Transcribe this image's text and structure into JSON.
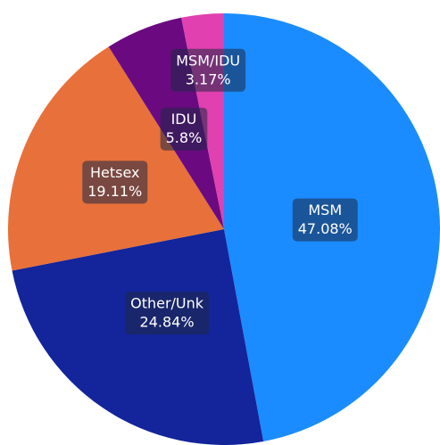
{
  "chart_data": {
    "type": "pie",
    "categories": [
      "MSM",
      "Other/Unk",
      "Hetsex",
      "IDU",
      "MSM/IDU"
    ],
    "values": [
      47.08,
      24.84,
      19.11,
      5.8,
      3.17
    ],
    "value_labels": [
      "47.08%",
      "24.84%",
      "19.11%",
      "5.8%",
      "3.17%"
    ],
    "colors": [
      "#1a8cff",
      "#14249a",
      "#e8703a",
      "#6b0a80",
      "#e040b0"
    ]
  }
}
